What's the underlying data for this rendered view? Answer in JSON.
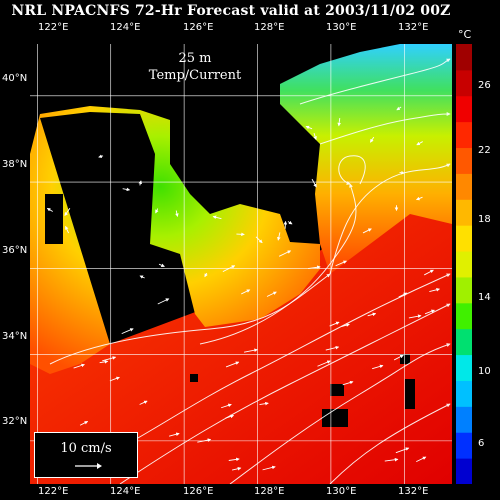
{
  "header": {
    "title": "NRL NPACNFS 72-Hr Forecast valid at 2003/11/02 00Z"
  },
  "map": {
    "depth_label": "25 m",
    "field_label": "Temp/Current",
    "lon_labels": [
      "122°E",
      "124°E",
      "126°E",
      "128°E",
      "130°E",
      "132°E"
    ],
    "lat_labels": [
      "40°N",
      "38°N",
      "36°N",
      "34°N",
      "32°N"
    ],
    "lon_range": [
      121.8,
      133.3
    ],
    "lat_range": [
      31.0,
      41.2
    ],
    "colors": {
      "land": "#000000",
      "arrows": "#ffffff",
      "grid": "#ffffff"
    }
  },
  "colorbar": {
    "unit": "°C",
    "labels": [
      "26",
      "22",
      "18",
      "14",
      "10",
      "6"
    ],
    "range": [
      5,
      27
    ],
    "colors": [
      "#0000d0",
      "#0030ff",
      "#0080ff",
      "#00c0ff",
      "#00e8e8",
      "#00e070",
      "#40f000",
      "#a0f000",
      "#e0f000",
      "#ffe000",
      "#ffb800",
      "#ff8800",
      "#ff5800",
      "#ff2800",
      "#f00000",
      "#c80000",
      "#a00000"
    ]
  },
  "legend": {
    "label": "10 cm/s"
  }
}
